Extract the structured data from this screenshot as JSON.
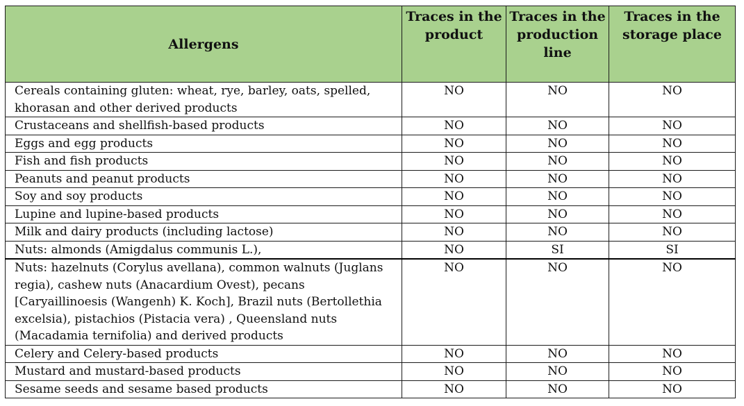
{
  "table": {
    "headers": {
      "allergen": "Allergens",
      "product": "Traces in the product",
      "production_line": "Traces in the production line",
      "storage": "Traces in the storage place"
    },
    "rows": [
      {
        "allergen": "Cereals containing gluten: wheat, rye, barley, oats, spelled, khorasan and other derived products",
        "product": "NO",
        "production_line": "NO",
        "storage": "NO"
      },
      {
        "allergen": "Crustaceans and shellfish-based products",
        "product": "NO",
        "production_line": "NO",
        "storage": "NO"
      },
      {
        "allergen": "Eggs and egg products",
        "product": "NO",
        "production_line": "NO",
        "storage": "NO"
      },
      {
        "allergen": "Fish and fish products",
        "product": "NO",
        "production_line": "NO",
        "storage": "NO"
      },
      {
        "allergen": "Peanuts and peanut products",
        "product": "NO",
        "production_line": "NO",
        "storage": "NO"
      },
      {
        "allergen": "Soy and soy products",
        "product": "NO",
        "production_line": "NO",
        "storage": "NO"
      },
      {
        "allergen": "Lupine and lupine-based products",
        "product": "NO",
        "production_line": "NO",
        "storage": "NO"
      },
      {
        "allergen": "Milk and dairy products (including lactose)",
        "product": "NO",
        "production_line": "NO",
        "storage": "NO"
      },
      {
        "allergen": "Nuts: almonds (Amigdalus communis L.),",
        "product": "NO",
        "production_line": "SI",
        "storage": "SI"
      },
      {
        "allergen": "Nuts: hazelnuts (Corylus avellana), common walnuts (Juglans regia), cashew nuts (Anacardium Ovest), pecans [Caryaillinoesis (Wangenh) K. Koch], Brazil nuts (Bertollethia excelsia), pistachios (Pistacia vera) , Queensland nuts (Macadamia ternifolia) and derived products",
        "product": "NO",
        "production_line": "NO",
        "storage": "NO"
      },
      {
        "allergen": "Celery and Celery-based products",
        "product": "NO",
        "production_line": "NO",
        "storage": "NO"
      },
      {
        "allergen": "Mustard and mustard-based products",
        "product": "NO",
        "production_line": "NO",
        "storage": "NO"
      },
      {
        "allergen": "Sesame seeds and sesame based products",
        "product": "NO",
        "production_line": "NO",
        "storage": "NO"
      }
    ]
  },
  "colors": {
    "header_background": "#a9d18e",
    "border": "#1a1a1a",
    "text": "#111111"
  }
}
